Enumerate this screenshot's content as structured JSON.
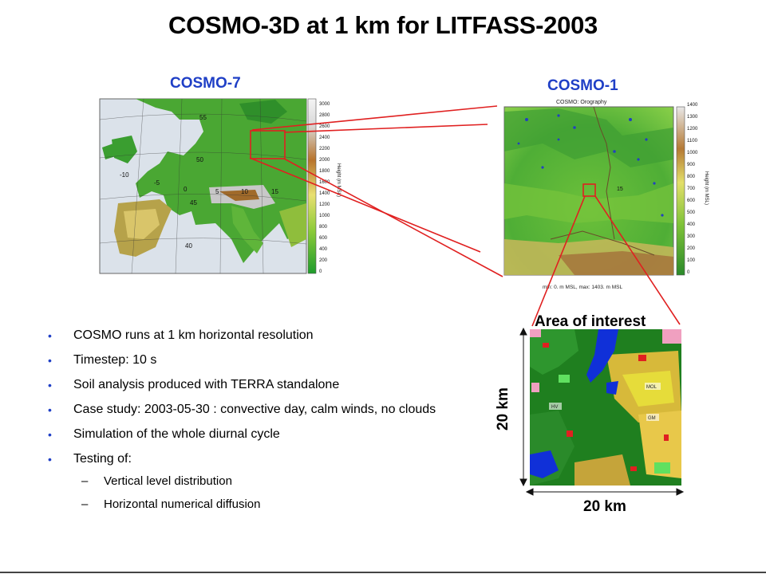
{
  "slide": {
    "title": "COSMO-3D at 1 km for LITFASS-2003",
    "cosmo7_label": "COSMO-7",
    "cosmo1_label": "COSMO-1",
    "area_label": "Area of interest",
    "scale_horizontal": "20 km",
    "scale_vertical": "20 km"
  },
  "bullets": [
    "COSMO runs at 1 km horizontal resolution",
    "Timestep: 10 s",
    "Soil analysis produced with TERRA standalone",
    "Case study: 2003-05-30 : convective day, calm winds, no clouds",
    "Simulation of the whole diurnal cycle",
    "Testing of:"
  ],
  "sub_bullets": [
    "Vertical level distribution",
    "Horizontal numerical diffusion"
  ],
  "cosmo7_map": {
    "colorbar_ticks": [
      "3000",
      "2800",
      "2600",
      "2400",
      "2200",
      "2000",
      "1800",
      "1600",
      "1400",
      "1200",
      "1000",
      "800",
      "600",
      "400",
      "200",
      "0"
    ],
    "colorbar_title": "Height (m MSL)",
    "grid_labels": [
      "55",
      "50",
      "45",
      "40",
      "-10",
      "-5",
      "0",
      "5",
      "10",
      "15"
    ]
  },
  "cosmo1_map": {
    "header": "COSMO: Orography",
    "footer": "min: 0. m MSL, max: 1403. m MSL",
    "colorbar_ticks": [
      "1400",
      "1300",
      "1200",
      "1100",
      "1000",
      "900",
      "800",
      "700",
      "600",
      "500",
      "400",
      "300",
      "200",
      "100",
      "0"
    ],
    "colorbar_title": "Height (m MSL)",
    "grid_labels": [
      "15"
    ]
  },
  "landuse_labels": [
    "MOL",
    "HV",
    "GM"
  ],
  "colors": {
    "title": "#000000",
    "map_label": "#1f3fc6",
    "zoom_lines": "#e02020",
    "bullet": "#1f3fc6"
  }
}
